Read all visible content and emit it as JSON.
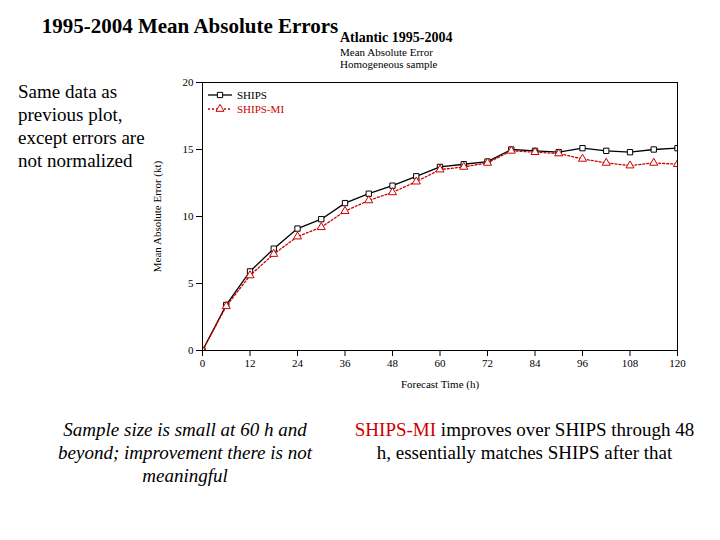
{
  "slide": {
    "title": "1995-2004 Mean Absolute Errors",
    "side_text": "Same data as previous plot, except errors are not normalized",
    "caption_left": "Sample size is small at 60 h and beyond; improvement there is not meaningful",
    "caption_right": {
      "highlight": "SHIPS-MI",
      "highlight_color": "#cc0000",
      "text": "improves over SHIPS through 48 h, essentially matches SHIPS after that"
    }
  },
  "chart_data": {
    "type": "line",
    "title": "Atlantic 1995-2004",
    "subtitle": [
      "Mean Absolute Error",
      "Homogeneous sample"
    ],
    "x_label": "Forecast Time (h)",
    "y_label": "Mean Absolute Error (kt)",
    "x": [
      0,
      6,
      12,
      18,
      24,
      30,
      36,
      42,
      48,
      54,
      60,
      66,
      72,
      78,
      84,
      90,
      96,
      102,
      108,
      114,
      120
    ],
    "series": [
      {
        "name": "SHIPS",
        "color": "#000000",
        "marker": "square",
        "line_style": "solid",
        "values": [
          0,
          3.4,
          5.9,
          7.6,
          9.1,
          9.8,
          11.0,
          11.7,
          12.3,
          13.0,
          13.7,
          13.9,
          14.1,
          15.0,
          14.9,
          14.8,
          15.1,
          14.9,
          14.8,
          15.0,
          15.1
        ]
      },
      {
        "name": "SHIPS-MI",
        "color": "#cc0000",
        "marker": "triangle",
        "line_style": "dotted",
        "values": [
          0,
          3.3,
          5.6,
          7.2,
          8.5,
          9.2,
          10.4,
          11.2,
          11.8,
          12.6,
          13.5,
          13.7,
          14.0,
          14.9,
          14.8,
          14.7,
          14.3,
          14.0,
          13.8,
          14.0,
          13.9
        ]
      }
    ],
    "xlim": [
      0,
      120
    ],
    "xticks": [
      0,
      12,
      24,
      36,
      48,
      60,
      72,
      84,
      96,
      108,
      120
    ],
    "ylim": [
      0,
      20
    ],
    "yticks": [
      0,
      5,
      10,
      15,
      20
    ],
    "grid": false,
    "legend": "top-left"
  }
}
